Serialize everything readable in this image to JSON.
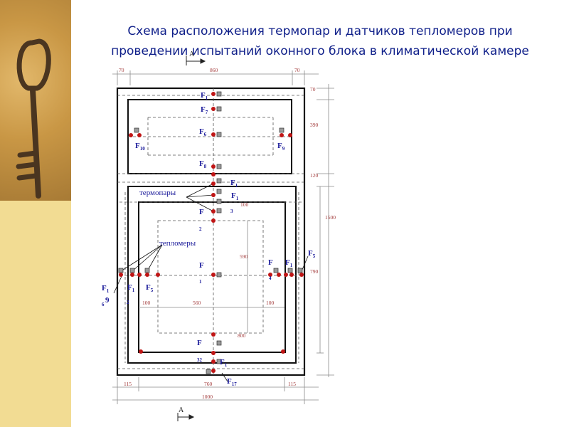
{
  "slide": {
    "title_line1": "Схема расположения термопар и датчиков тепломеров при",
    "title_line2": "проведении испытаний оконного блока в климатической камере"
  },
  "colors": {
    "title": "#10208a",
    "label_blue": "#1a1a9a",
    "dimension": "#a23a3a",
    "thermocouple": "#c01515",
    "heat_meter": "#9a9a9a",
    "sidebar": "#f2dc93"
  },
  "section_marker": {
    "label": "А"
  },
  "dimensions": {
    "top": [
      "70",
      "860",
      "70"
    ],
    "right": [
      "70",
      "390",
      "120",
      "1500",
      "790"
    ],
    "bottom_inner": [
      "115",
      "760",
      "115"
    ],
    "bottom_total": "1000",
    "inner": [
      "100",
      "590",
      "100",
      "560",
      "100",
      "800"
    ]
  },
  "callouts": {
    "thermocouples": "термопары",
    "heat_meters": "тепломеры"
  },
  "labels": {
    "F_top_a": "F",
    "F_top_a_sub": "1",
    "F_top_b": "F",
    "F_top_b_sub": "7",
    "F_upper_center": "F",
    "F_upper_center_sub": "6",
    "F_upper_left": "F",
    "F_upper_left_sub": "10",
    "F_upper_right": "F",
    "F_upper_right_sub": "9",
    "F_transom": "F",
    "F_transom_sub": "8",
    "F_mid_a": "F",
    "F_mid_a_sub": "1",
    "F_mid_b": "F",
    "F_mid_b_sub": "1",
    "F_mid_b_digit": "3",
    "F_mid_c": "F",
    "F_mid_c_digit": "2",
    "F_right_frame": "F",
    "F_right_frame_sub": "1",
    "F_right_outer": "F",
    "F_right_outer_sub": "5",
    "F_right_inner": "F",
    "F_right_inner_sub": "1",
    "F_right_pane": "F",
    "F_right_pane_digit": "4",
    "F_center": "F",
    "F_center_digit": "1",
    "F_left_outer": "F",
    "F_left_outer_sub": "1",
    "F_left_outer_digits": "6",
    "F_left_outer_nine": "9",
    "F_left_frame": "F",
    "F_left_frame_sub": "1",
    "F_left_frame_digit": "2",
    "F_left_pane": "F",
    "F_left_pane_sub": "5",
    "F_bottom_a": "F",
    "F_bottom_a_digits": "32",
    "F_bottom_b": "F",
    "F_bottom_b_sub": "1",
    "F_bottom_c": "F",
    "F_bottom_c_sub": "17"
  }
}
